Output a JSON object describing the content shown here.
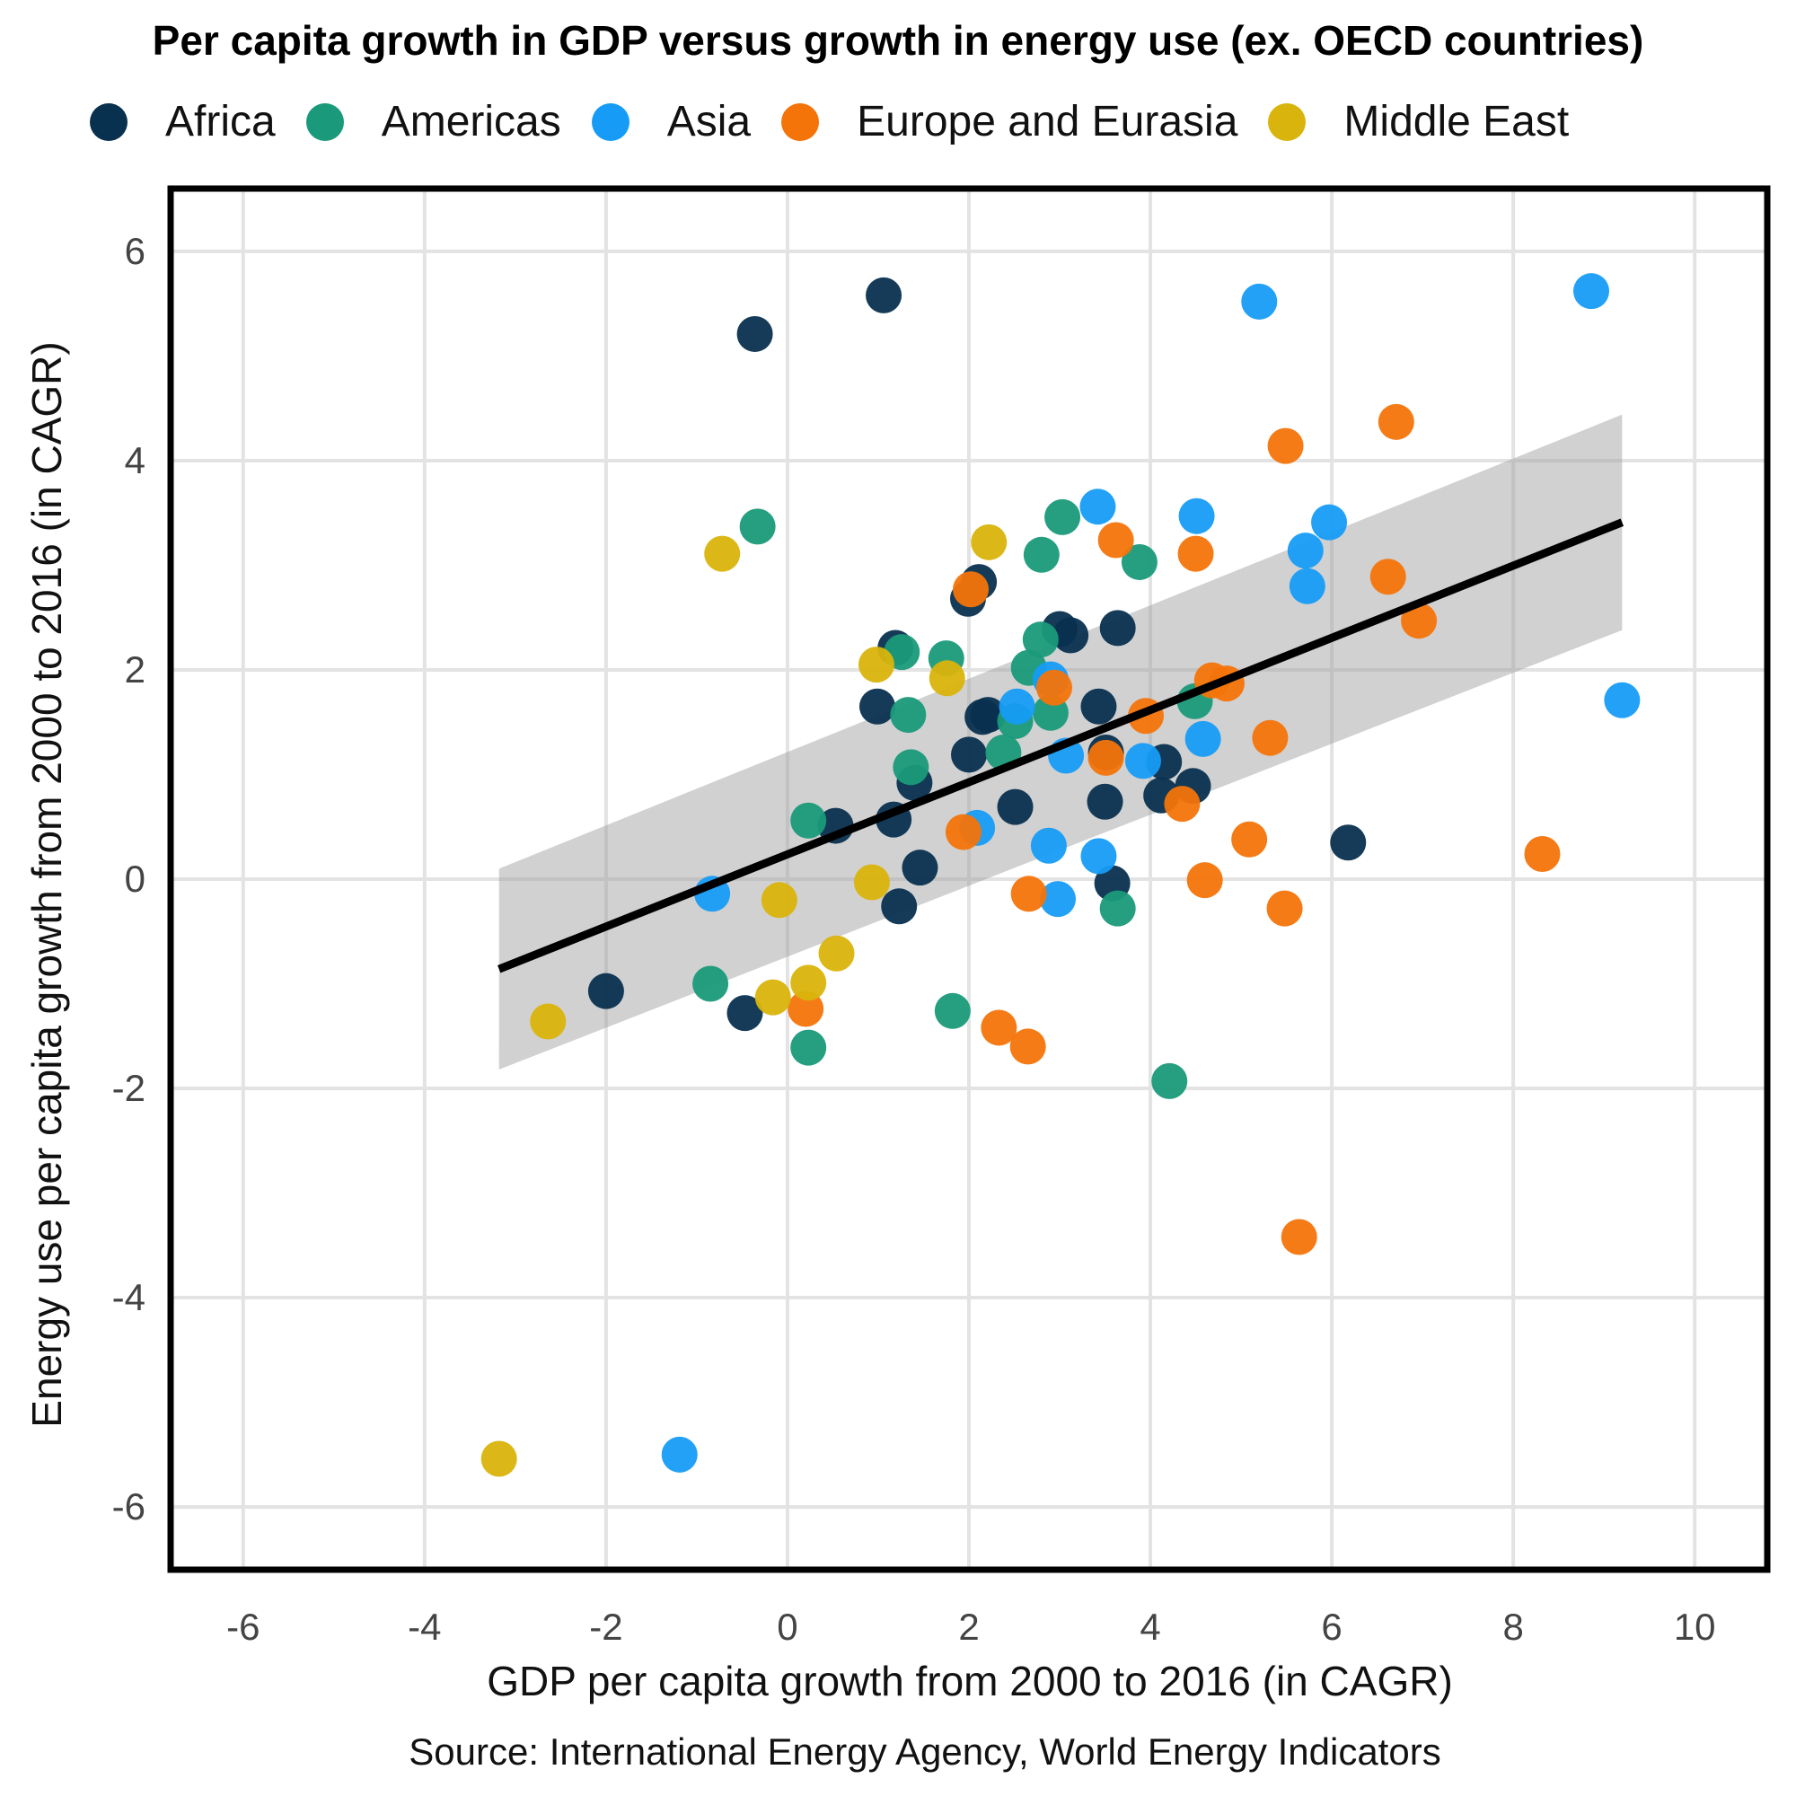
{
  "chart_data": {
    "type": "scatter",
    "title": "Per capita growth in GDP versus growth in energy use (ex. OECD countries)",
    "xlabel": "GDP per capita growth from 2000 to 2016 (in CAGR)",
    "ylabel": "Energy use per capita growth from 2000 to 2016 (in CAGR)",
    "source": "Source: International Energy Agency, World Energy Indicators",
    "xlim": [
      -6.8,
      10.8
    ],
    "ylim": [
      -6.6,
      6.6
    ],
    "xticks": [
      -6,
      -4,
      -2,
      0,
      2,
      4,
      6,
      8,
      10
    ],
    "yticks": [
      -6,
      -4,
      -2,
      0,
      2,
      4,
      6
    ],
    "grid": true,
    "legend_position": "top",
    "series": [
      {
        "name": "Africa",
        "color": "#08304f",
        "points": [
          [
            -0.36,
            5.21
          ],
          [
            1.06,
            5.58
          ],
          [
            2.11,
            2.84
          ],
          [
            1.99,
            2.68
          ],
          [
            1.19,
            2.21
          ],
          [
            0.99,
            1.65
          ],
          [
            3.0,
            2.39
          ],
          [
            3.12,
            2.33
          ],
          [
            3.64,
            2.4
          ],
          [
            2.21,
            1.57
          ],
          [
            2.15,
            1.55
          ],
          [
            3.43,
            1.65
          ],
          [
            2.0,
            1.19
          ],
          [
            1.4,
            0.92
          ],
          [
            1.17,
            0.57
          ],
          [
            0.53,
            0.51
          ],
          [
            2.51,
            0.69
          ],
          [
            3.51,
            1.21
          ],
          [
            3.5,
            0.74
          ],
          [
            4.15,
            1.12
          ],
          [
            4.12,
            0.8
          ],
          [
            4.47,
            0.89
          ],
          [
            1.46,
            0.11
          ],
          [
            3.58,
            -0.04
          ],
          [
            1.23,
            -0.26
          ],
          [
            -2.0,
            -1.07
          ],
          [
            -0.47,
            -1.28
          ],
          [
            6.18,
            0.35
          ]
        ]
      },
      {
        "name": "Americas",
        "color": "#1a9a7a",
        "points": [
          [
            -0.33,
            3.37
          ],
          [
            3.03,
            3.46
          ],
          [
            2.8,
            3.1
          ],
          [
            3.88,
            3.03
          ],
          [
            1.26,
            2.17
          ],
          [
            1.75,
            2.11
          ],
          [
            2.79,
            2.29
          ],
          [
            2.66,
            2.02
          ],
          [
            1.33,
            1.57
          ],
          [
            2.9,
            1.59
          ],
          [
            2.51,
            1.51
          ],
          [
            4.49,
            1.7
          ],
          [
            1.36,
            1.07
          ],
          [
            2.38,
            1.21
          ],
          [
            0.23,
            0.56
          ],
          [
            -0.85,
            -1.0
          ],
          [
            0.23,
            -1.61
          ],
          [
            1.82,
            -1.26
          ],
          [
            3.64,
            -0.28
          ],
          [
            4.21,
            -1.93
          ]
        ]
      },
      {
        "name": "Asia",
        "color": "#169cf6",
        "points": [
          [
            5.2,
            5.52
          ],
          [
            8.86,
            5.62
          ],
          [
            3.42,
            3.56
          ],
          [
            4.51,
            3.47
          ],
          [
            5.71,
            3.14
          ],
          [
            5.97,
            3.41
          ],
          [
            5.73,
            2.8
          ],
          [
            9.2,
            1.71
          ],
          [
            2.9,
            1.91
          ],
          [
            2.53,
            1.65
          ],
          [
            4.58,
            1.34
          ],
          [
            3.92,
            1.13
          ],
          [
            3.07,
            1.18
          ],
          [
            2.09,
            0.49
          ],
          [
            2.88,
            0.32
          ],
          [
            3.43,
            0.22
          ],
          [
            2.98,
            -0.19
          ],
          [
            -0.83,
            -0.14
          ],
          [
            -1.19,
            -5.5
          ]
        ]
      },
      {
        "name": "Europe and Eurasia",
        "color": "#f4740a",
        "points": [
          [
            6.71,
            4.37
          ],
          [
            5.49,
            4.14
          ],
          [
            3.62,
            3.24
          ],
          [
            4.5,
            3.11
          ],
          [
            2.02,
            2.77
          ],
          [
            6.62,
            2.89
          ],
          [
            6.96,
            2.47
          ],
          [
            4.68,
            1.9
          ],
          [
            4.84,
            1.87
          ],
          [
            2.94,
            1.83
          ],
          [
            3.95,
            1.56
          ],
          [
            5.32,
            1.35
          ],
          [
            3.51,
            1.16
          ],
          [
            4.35,
            0.72
          ],
          [
            5.09,
            0.38
          ],
          [
            8.32,
            0.24
          ],
          [
            1.94,
            0.45
          ],
          [
            4.6,
            -0.01
          ],
          [
            2.66,
            -0.14
          ],
          [
            5.48,
            -0.28
          ],
          [
            0.2,
            -1.24
          ],
          [
            2.33,
            -1.42
          ],
          [
            2.65,
            -1.6
          ],
          [
            5.64,
            -3.42
          ]
        ]
      },
      {
        "name": "Middle East",
        "color": "#d9b40c",
        "points": [
          [
            -0.72,
            3.11
          ],
          [
            2.22,
            3.22
          ],
          [
            0.98,
            2.05
          ],
          [
            1.76,
            1.92
          ],
          [
            -0.09,
            -0.2
          ],
          [
            0.93,
            -0.03
          ],
          [
            0.54,
            -0.71
          ],
          [
            0.23,
            -0.99
          ],
          [
            -0.16,
            -1.13
          ],
          [
            -2.64,
            -1.36
          ],
          [
            -3.18,
            -5.54
          ]
        ]
      }
    ],
    "regression": {
      "line": [
        [
          -3.18,
          -0.86
        ],
        [
          9.2,
          3.41
        ]
      ],
      "ci_band": {
        "x": [
          -3.18,
          9.2
        ],
        "upper": [
          0.1,
          4.44
        ],
        "lower": [
          -1.82,
          2.38
        ]
      }
    }
  }
}
